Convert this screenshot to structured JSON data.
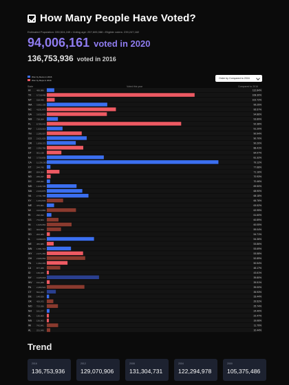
{
  "header": {
    "title": "How Many People Have Voted?",
    "meta": "Estimated Population: 330,524,249 • Voting age: 257,605,088 • Eligible voters: 239,247,182"
  },
  "totals": {
    "count_2020": "94,006,161",
    "label_2020": "voted in 2020",
    "count_2016": "136,753,936",
    "label_2016": "voted in 2016"
  },
  "legend": {
    "items": [
      {
        "label": "Won by Dems in 2016",
        "color": "#3b6ff0"
      },
      {
        "label": "Won by Reps in 2016",
        "color": "#ee5a63"
      }
    ]
  },
  "order_select": {
    "value": "Order by Compared to 2016"
  },
  "columns": {
    "state": "State",
    "voted": "Voted this year",
    "compared": "Compared to 2016"
  },
  "colors": {
    "dem": "#3b6ff0",
    "rep": "#ee5a63",
    "dem_dim": "#2a3f8f",
    "rep_dim": "#8a3a2e",
    "row_bg": "#141414"
  },
  "chart_data": {
    "type": "bar",
    "orientation": "horizontal",
    "xlim": [
      0,
      100
    ],
    "rows": [
      {
        "state": "HI",
        "votes": "489,986",
        "pct": "112.84%",
        "v": 3.9,
        "party": "D"
      },
      {
        "state": "TX",
        "votes": "9,718,446",
        "pct": "108.30%",
        "v": 77,
        "party": "R"
      },
      {
        "state": "MT",
        "votes": "518,440",
        "pct": "102.72%",
        "v": 4.1,
        "party": "R"
      },
      {
        "state": "WA",
        "votes": "3,962,135",
        "pct": "95.25%",
        "v": 31.5,
        "party": "D"
      },
      {
        "state": "NC",
        "votes": "4,531,973",
        "pct": "95.57%",
        "v": 36,
        "party": "R"
      },
      {
        "state": "GA",
        "votes": "3,932,000",
        "pct": "94.86%",
        "v": 31.3,
        "party": "R"
      },
      {
        "state": "NM",
        "votes": "728,264",
        "pct": "93.89%",
        "v": 5.8,
        "party": "D"
      },
      {
        "state": "FL",
        "votes": "8,786,642",
        "pct": "92.38%",
        "v": 70,
        "party": "R"
      },
      {
        "state": "NV",
        "votes": "1,025,519",
        "pct": "91.20%",
        "v": 8.2,
        "party": "D"
      },
      {
        "state": "TN",
        "votes": "2,285,557",
        "pct": "90.94%",
        "v": 18.2,
        "party": "R"
      },
      {
        "state": "CO",
        "votes": "2,621,025",
        "pct": "90.70%",
        "v": 20.8,
        "party": "D"
      },
      {
        "state": "OR",
        "votes": "1,898,172",
        "pct": "90.20%",
        "v": 15.1,
        "party": "D"
      },
      {
        "state": "AZ",
        "votes": "2,392,796",
        "pct": "88.41%",
        "v": 19,
        "party": "R"
      },
      {
        "state": "UT",
        "votes": "951,138",
        "pct": "84.07%",
        "v": 7.6,
        "party": "R"
      },
      {
        "state": "NJ",
        "votes": "3,730,835",
        "pct": "81.32%",
        "v": 29.7,
        "party": "D"
      },
      {
        "state": "CA",
        "votes": "11,236,303",
        "pct": "79.12%",
        "v": 89.4,
        "party": "D"
      },
      {
        "state": "VT",
        "votes": "244,745",
        "pct": "77.68%",
        "v": 1.9,
        "party": "D",
        "dim": false
      },
      {
        "state": "AR",
        "votes": "834,364",
        "pct": "71.16%",
        "v": 6.6,
        "party": "R"
      },
      {
        "state": "ND",
        "votes": "249,247",
        "pct": "70.93%",
        "v": 2,
        "party": "R"
      },
      {
        "state": "DC",
        "votes": "218,931",
        "pct": "70.46%",
        "v": 1.7,
        "party": "D"
      },
      {
        "state": "MD",
        "votes": "1,946,735",
        "pct": "69.50%",
        "v": 15.5,
        "party": "D"
      },
      {
        "state": "MA",
        "votes": "2,330,875",
        "pct": "68.90%",
        "v": 18.5,
        "party": "D"
      },
      {
        "state": "VA",
        "votes": "2,731,788",
        "pct": "68.18%",
        "v": 21.7,
        "party": "D"
      },
      {
        "state": "KY",
        "votes": "1,064,533",
        "pct": "66.76%",
        "v": 8.5,
        "party": "R",
        "dim": true
      },
      {
        "state": "ME",
        "votes": "475,861",
        "pct": "63.52%",
        "v": 3.8,
        "party": "D"
      },
      {
        "state": "MI",
        "votes": "3,013,884",
        "pct": "62.95%",
        "v": 15.2,
        "party": "R",
        "dim": true
      },
      {
        "state": "RI",
        "votes": "296,932",
        "pct": "61.60%",
        "v": 2.4,
        "party": "D"
      },
      {
        "state": "KS",
        "votes": "772,664",
        "pct": "60.89%",
        "v": 6.1,
        "party": "R",
        "dim": true
      },
      {
        "state": "IN",
        "votes": "1,626,952",
        "pct": "60.05%",
        "v": 12.9,
        "party": "R",
        "dim": true
      },
      {
        "state": "SC",
        "votes": "924,523",
        "pct": "59.04%",
        "v": 7.4,
        "party": "R",
        "dim": true
      },
      {
        "state": "SD",
        "votes": "202,484",
        "pct": "54.71%",
        "v": 1.6,
        "party": "R"
      },
      {
        "state": "IL",
        "votes": "3,098,674",
        "pct": "54.36%",
        "v": 24.6,
        "party": "D"
      },
      {
        "state": "NE",
        "votes": "455,885",
        "pct": "53.86%",
        "v": 3.6,
        "party": "R"
      },
      {
        "state": "MN",
        "votes": "1,581,716",
        "pct": "53.69%",
        "v": 12.6,
        "party": "D"
      },
      {
        "state": "WY",
        "votes": "2,371,450",
        "pct": "53.58%",
        "v": 18.9,
        "party": "R"
      },
      {
        "state": "OH",
        "votes": "2,906,554",
        "pct": "52.89%",
        "v": 20,
        "party": "R",
        "dim": true
      },
      {
        "state": "PA",
        "votes": "1,362,265",
        "pct": "50.54%",
        "v": 10.8,
        "party": "R"
      },
      {
        "state": "LA",
        "votes": "877,466",
        "pct": "48.17%",
        "v": 7,
        "party": "R",
        "dim": true
      },
      {
        "state": "ID",
        "votes": "139,925",
        "pct": "43.61%",
        "v": 1.1,
        "party": "R"
      },
      {
        "state": "NY",
        "votes": "3,425,018",
        "pct": "39.80%",
        "v": 27.2,
        "party": "D",
        "dim": true
      },
      {
        "state": "WV",
        "votes": "191,269",
        "pct": "39.51%",
        "v": 1.5,
        "party": "R"
      },
      {
        "state": "PA",
        "votes": "2,466,524",
        "pct": "39.00%",
        "v": 19.6,
        "party": "R",
        "dim": true
      },
      {
        "state": "CT",
        "votes": "591,263",
        "pct": "35.93%",
        "v": 4.7,
        "party": "D",
        "dim": true
      },
      {
        "state": "DE",
        "votes": "148,626",
        "pct": "33.44%",
        "v": 1.2,
        "party": "D"
      },
      {
        "state": "OK",
        "votes": "429,072",
        "pct": "29.52%",
        "v": 3.4,
        "party": "R",
        "dim": true
      },
      {
        "state": "MO",
        "votes": "723,036",
        "pct": "25.74%",
        "v": 5.8,
        "party": "R",
        "dim": true
      },
      {
        "state": "NH",
        "votes": "181,277",
        "pct": "24.40%",
        "v": 1.4,
        "party": "D"
      },
      {
        "state": "AL",
        "votes": "136,869",
        "pct": "22.47%",
        "v": 1.1,
        "party": "R"
      },
      {
        "state": "MS",
        "votes": "136,062",
        "pct": "19.06%",
        "v": 1.1,
        "party": "R"
      },
      {
        "state": "WI",
        "votes": "742,841",
        "pct": "11.79%",
        "v": 5.9,
        "party": "R",
        "dim": true
      },
      {
        "state": "AL",
        "votes": "221,040",
        "pct": "10.44%",
        "v": 1.8,
        "party": "R",
        "dim": true
      }
    ]
  },
  "trend": {
    "title": "Trend",
    "cards": [
      {
        "year": "2016",
        "value": "136,753,936"
      },
      {
        "year": "2012",
        "value": "129,070,906"
      },
      {
        "year": "2008",
        "value": "131,304,731"
      },
      {
        "year": "2004",
        "value": "122,294,978"
      },
      {
        "year": "2000",
        "value": "105,375,486"
      }
    ]
  }
}
